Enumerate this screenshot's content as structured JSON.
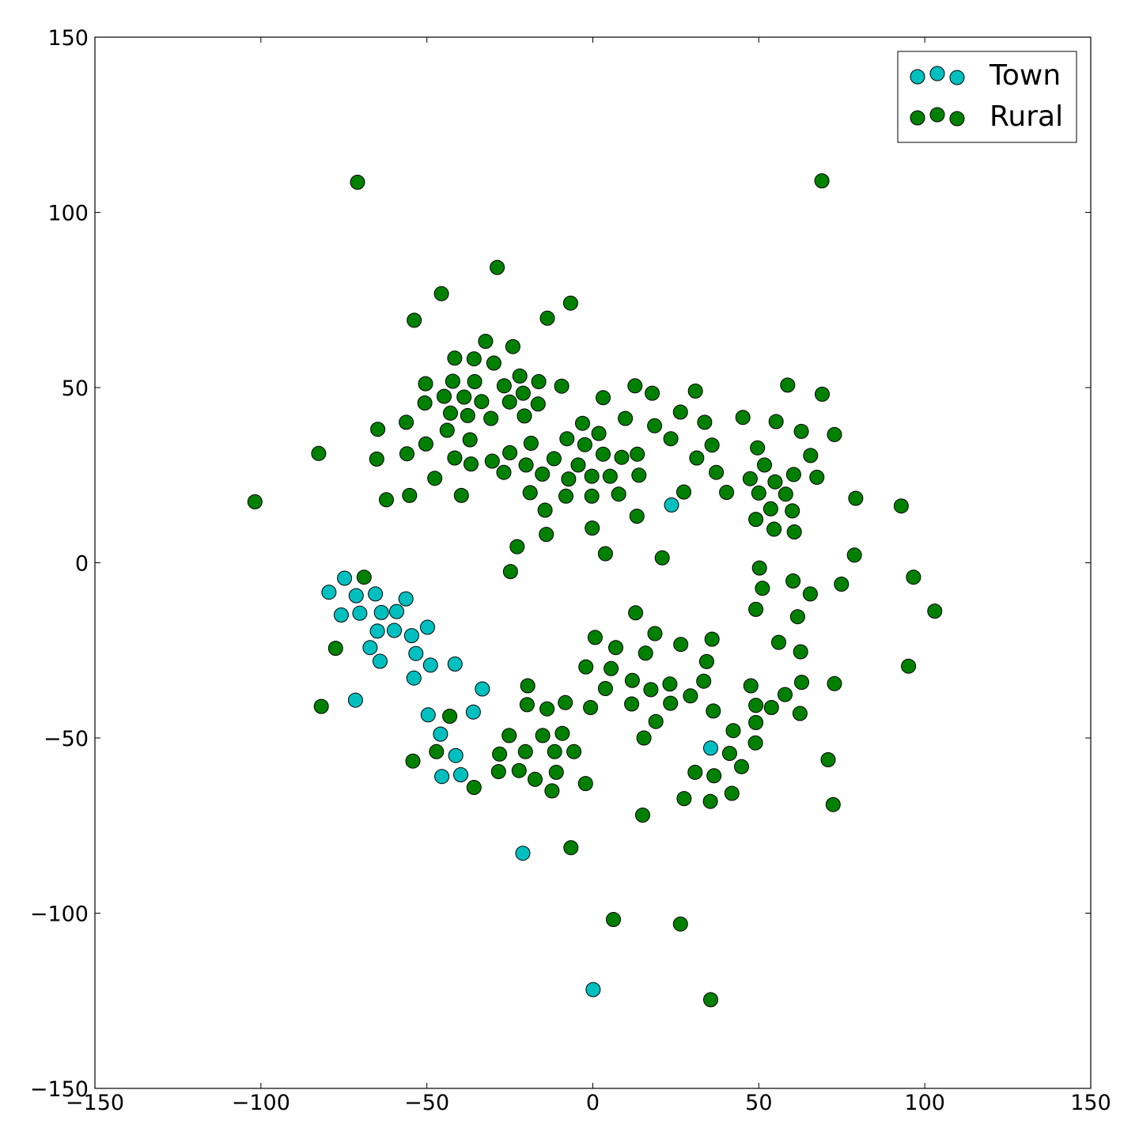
{
  "chart_data": {
    "type": "scatter",
    "xlim": [
      -150,
      150
    ],
    "ylim": [
      -150,
      150
    ],
    "x_ticks": [
      "−150",
      "−100",
      "−50",
      "0",
      "50",
      "100",
      "150"
    ],
    "y_ticks": [
      "150",
      "100",
      "50",
      "0",
      "−50",
      "−100",
      "−150"
    ],
    "grid": false,
    "legend_position": "top-right",
    "series": [
      {
        "name": "Town",
        "color": "#00bfbf",
        "points": [
          [
            -74.8,
            -4.4
          ],
          [
            -79.5,
            -8.4
          ],
          [
            -71.3,
            -9.4
          ],
          [
            -65.5,
            -8.9
          ],
          [
            -56.3,
            -10.3
          ],
          [
            -75.8,
            -14.9
          ],
          [
            -70.2,
            -14.4
          ],
          [
            -63.7,
            -14.2
          ],
          [
            -59.1,
            -13.9
          ],
          [
            -64.9,
            -19.5
          ],
          [
            -59.8,
            -19.3
          ],
          [
            -49.8,
            -18.4
          ],
          [
            -54.6,
            -20.8
          ],
          [
            -67.1,
            -24.2
          ],
          [
            -53.3,
            -25.9
          ],
          [
            -64.1,
            -28.1
          ],
          [
            -48.9,
            -29.2
          ],
          [
            -41.5,
            -28.9
          ],
          [
            -53.9,
            -32.9
          ],
          [
            -33.3,
            -36.0
          ],
          [
            -71.5,
            -39.2
          ],
          [
            -36.0,
            -42.6
          ],
          [
            -49.6,
            -43.4
          ],
          [
            -45.9,
            -48.9
          ],
          [
            -41.3,
            -55.0
          ],
          [
            -45.5,
            -61.0
          ],
          [
            -39.8,
            -60.5
          ],
          [
            -21.1,
            -82.9
          ],
          [
            0.1,
            -121.8
          ],
          [
            35.5,
            -52.9
          ],
          [
            23.7,
            16.5
          ]
        ]
      },
      {
        "name": "Rural",
        "color": "#008000",
        "points": [
          [
            -70.9,
            108.6
          ],
          [
            69.0,
            109.0
          ],
          [
            -28.8,
            84.3
          ],
          [
            -45.6,
            76.8
          ],
          [
            -6.7,
            74.1
          ],
          [
            -53.8,
            69.2
          ],
          [
            -13.7,
            69.8
          ],
          [
            -32.3,
            63.2
          ],
          [
            -24.1,
            61.7
          ],
          [
            -41.6,
            58.4
          ],
          [
            -35.8,
            58.2
          ],
          [
            -29.8,
            57.0
          ],
          [
            -22.0,
            53.3
          ],
          [
            -50.4,
            51.1
          ],
          [
            -42.2,
            51.8
          ],
          [
            -35.6,
            51.7
          ],
          [
            -26.7,
            50.5
          ],
          [
            -16.3,
            51.7
          ],
          [
            -9.4,
            50.4
          ],
          [
            12.7,
            50.5
          ],
          [
            -44.8,
            47.5
          ],
          [
            -38.8,
            47.3
          ],
          [
            -21.0,
            48.4
          ],
          [
            17.9,
            48.4
          ],
          [
            30.9,
            49.0
          ],
          [
            58.7,
            50.7
          ],
          [
            69.1,
            48.1
          ],
          [
            -50.6,
            45.6
          ],
          [
            -33.5,
            46.0
          ],
          [
            -25.1,
            45.9
          ],
          [
            -16.5,
            45.3
          ],
          [
            3.1,
            47.1
          ],
          [
            -42.9,
            42.7
          ],
          [
            -37.7,
            42.0
          ],
          [
            -30.7,
            41.2
          ],
          [
            -20.6,
            41.9
          ],
          [
            -56.2,
            40.1
          ],
          [
            -64.8,
            38.1
          ],
          [
            -43.9,
            37.8
          ],
          [
            -3.1,
            39.8
          ],
          [
            1.8,
            36.9
          ],
          [
            9.8,
            41.2
          ],
          [
            18.6,
            39.1
          ],
          [
            26.4,
            43.0
          ],
          [
            33.7,
            40.1
          ],
          [
            45.2,
            41.5
          ],
          [
            55.2,
            40.3
          ],
          [
            62.8,
            37.5
          ],
          [
            72.8,
            36.6
          ],
          [
            -82.6,
            31.2
          ],
          [
            -50.3,
            33.9
          ],
          [
            -37.0,
            35.1
          ],
          [
            -18.6,
            34.1
          ],
          [
            -7.8,
            35.4
          ],
          [
            -2.4,
            33.7
          ],
          [
            23.5,
            35.4
          ],
          [
            35.9,
            33.6
          ],
          [
            49.6,
            32.8
          ],
          [
            -65.1,
            29.6
          ],
          [
            -56.0,
            31.1
          ],
          [
            -41.6,
            29.9
          ],
          [
            -36.7,
            28.2
          ],
          [
            -30.3,
            29.0
          ],
          [
            -25.0,
            31.4
          ],
          [
            -20.1,
            27.9
          ],
          [
            -11.7,
            29.7
          ],
          [
            -4.4,
            27.9
          ],
          [
            3.1,
            31.0
          ],
          [
            8.7,
            30.1
          ],
          [
            13.4,
            31.0
          ],
          [
            31.3,
            29.9
          ],
          [
            51.7,
            27.9
          ],
          [
            65.6,
            30.6
          ],
          [
            -47.6,
            24.1
          ],
          [
            -26.8,
            25.8
          ],
          [
            -15.2,
            25.3
          ],
          [
            -7.3,
            23.9
          ],
          [
            -0.3,
            24.7
          ],
          [
            5.2,
            24.7
          ],
          [
            13.9,
            25.0
          ],
          [
            37.2,
            25.8
          ],
          [
            47.4,
            24.0
          ],
          [
            54.9,
            23.1
          ],
          [
            60.5,
            25.2
          ],
          [
            67.5,
            24.4
          ],
          [
            -101.8,
            17.4
          ],
          [
            -62.2,
            18.0
          ],
          [
            -55.2,
            19.2
          ],
          [
            -39.6,
            19.2
          ],
          [
            -18.9,
            20.0
          ],
          [
            -8.1,
            19.0
          ],
          [
            -0.3,
            19.0
          ],
          [
            7.8,
            19.6
          ],
          [
            27.4,
            20.2
          ],
          [
            40.3,
            20.1
          ],
          [
            50.0,
            19.9
          ],
          [
            58.1,
            19.6
          ],
          [
            79.2,
            18.4
          ],
          [
            -14.4,
            15.0
          ],
          [
            53.6,
            15.4
          ],
          [
            60.1,
            14.8
          ],
          [
            92.9,
            16.2
          ],
          [
            13.3,
            13.3
          ],
          [
            49.1,
            12.4
          ],
          [
            -0.2,
            9.9
          ],
          [
            54.6,
            9.6
          ],
          [
            60.7,
            8.8
          ],
          [
            -14.0,
            8.1
          ],
          [
            -22.8,
            4.6
          ],
          [
            3.8,
            2.6
          ],
          [
            20.9,
            1.4
          ],
          [
            78.8,
            2.2
          ],
          [
            -24.8,
            -2.5
          ],
          [
            50.2,
            -1.5
          ],
          [
            -68.9,
            -4.1
          ],
          [
            51.1,
            -7.3
          ],
          [
            60.3,
            -5.2
          ],
          [
            65.5,
            -8.9
          ],
          [
            74.9,
            -6.1
          ],
          [
            96.6,
            -4.1
          ],
          [
            103.0,
            -13.8
          ],
          [
            49.1,
            -13.3
          ],
          [
            12.9,
            -14.3
          ],
          [
            61.7,
            -15.4
          ],
          [
            -77.5,
            -24.4
          ],
          [
            0.7,
            -21.3
          ],
          [
            18.7,
            -20.2
          ],
          [
            35.9,
            -21.8
          ],
          [
            6.9,
            -24.2
          ],
          [
            15.9,
            -25.8
          ],
          [
            26.5,
            -23.3
          ],
          [
            56.0,
            -22.7
          ],
          [
            62.6,
            -25.4
          ],
          [
            34.3,
            -28.2
          ],
          [
            -2.1,
            -29.7
          ],
          [
            5.5,
            -30.2
          ],
          [
            -19.6,
            -35.1
          ],
          [
            3.8,
            -35.9
          ],
          [
            11.9,
            -33.6
          ],
          [
            17.5,
            -36.2
          ],
          [
            23.2,
            -34.6
          ],
          [
            33.4,
            -33.8
          ],
          [
            47.6,
            -35.1
          ],
          [
            62.9,
            -34.1
          ],
          [
            72.8,
            -34.5
          ],
          [
            -81.8,
            -41.0
          ],
          [
            -8.3,
            -39.9
          ],
          [
            -0.7,
            -41.3
          ],
          [
            -19.8,
            -40.5
          ],
          [
            -13.8,
            -41.7
          ],
          [
            11.7,
            -40.3
          ],
          [
            23.4,
            -40.1
          ],
          [
            29.4,
            -38.0
          ],
          [
            49.1,
            -40.7
          ],
          [
            53.8,
            -41.3
          ],
          [
            57.9,
            -37.6
          ],
          [
            36.3,
            -42.3
          ],
          [
            62.4,
            -43.0
          ],
          [
            -43.1,
            -43.8
          ],
          [
            19.0,
            -45.3
          ],
          [
            49.1,
            -45.6
          ],
          [
            42.3,
            -47.9
          ],
          [
            -25.2,
            -49.3
          ],
          [
            -15.1,
            -49.3
          ],
          [
            -9.2,
            -48.7
          ],
          [
            15.4,
            -50.0
          ],
          [
            49.0,
            -51.4
          ],
          [
            -28.1,
            -54.6
          ],
          [
            -20.3,
            -53.9
          ],
          [
            -11.5,
            -53.9
          ],
          [
            -5.7,
            -53.9
          ],
          [
            -47.1,
            -53.9
          ],
          [
            41.2,
            -54.4
          ],
          [
            -54.2,
            -56.6
          ],
          [
            70.9,
            -56.2
          ],
          [
            44.8,
            -58.2
          ],
          [
            -28.4,
            -59.6
          ],
          [
            -22.2,
            -59.3
          ],
          [
            -11.0,
            -59.8
          ],
          [
            30.8,
            -59.8
          ],
          [
            36.5,
            -60.8
          ],
          [
            -17.4,
            -61.8
          ],
          [
            -2.2,
            -63.0
          ],
          [
            -35.8,
            -64.1
          ],
          [
            -12.3,
            -65.1
          ],
          [
            41.9,
            -65.8
          ],
          [
            27.5,
            -67.3
          ],
          [
            35.4,
            -68.1
          ],
          [
            72.4,
            -69.0
          ],
          [
            15.0,
            -72.0
          ],
          [
            -6.6,
            -81.3
          ],
          [
            95.1,
            -29.5
          ],
          [
            6.2,
            -101.8
          ],
          [
            26.4,
            -103.1
          ],
          [
            35.5,
            -124.7
          ]
        ]
      }
    ]
  }
}
